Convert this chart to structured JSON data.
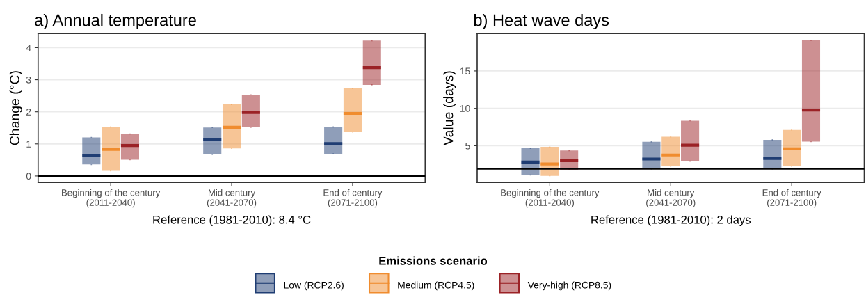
{
  "chart_data": [
    {
      "type": "box",
      "title": "a) Annual temperature",
      "ylabel": "Change (°C)",
      "xlabel": "Reference (1981-2010): 8.4 °C",
      "categories": [
        "Beginning of the century\n(2011-2040)",
        "Mid century\n(2041-2070)",
        "End of century\n(2071-2100)"
      ],
      "ylim": [
        -0.2,
        4.44
      ],
      "yticks": [
        0,
        1,
        2,
        3,
        4
      ],
      "grid": "y",
      "legend": "bottom",
      "legend_title": "Emissions scenario",
      "ref_lines": [
        {
          "axis": "y",
          "value": 0,
          "color": "#000000"
        }
      ],
      "series": [
        {
          "name": "Low (RCP2.6)",
          "color": "#1f3d73",
          "boxes": [
            {
              "low": 0.36,
              "q1": 0.36,
              "median": 0.63,
              "q3": 1.2,
              "high": 1.2
            },
            {
              "low": 0.67,
              "q1": 0.67,
              "median": 1.14,
              "q3": 1.51,
              "high": 1.51
            },
            {
              "low": 0.69,
              "q1": 0.69,
              "median": 1.01,
              "q3": 1.53,
              "high": 1.53
            }
          ]
        },
        {
          "name": "Medium (RCP4.5)",
          "color": "#f08c2e",
          "boxes": [
            {
              "low": 0.16,
              "q1": 0.16,
              "median": 0.83,
              "q3": 1.53,
              "high": 1.53
            },
            {
              "low": 0.86,
              "q1": 0.86,
              "median": 1.52,
              "q3": 2.23,
              "high": 2.23
            },
            {
              "low": 1.37,
              "q1": 1.37,
              "median": 1.95,
              "q3": 2.73,
              "high": 2.73
            }
          ]
        },
        {
          "name": "Very-high (RCP8.5)",
          "color": "#9b2226",
          "boxes": [
            {
              "low": 0.51,
              "q1": 0.51,
              "median": 0.95,
              "q3": 1.31,
              "high": 1.31
            },
            {
              "low": 1.52,
              "q1": 1.52,
              "median": 1.98,
              "q3": 2.53,
              "high": 2.53
            },
            {
              "low": 2.84,
              "q1": 2.84,
              "median": 3.38,
              "q3": 4.22,
              "high": 4.22
            }
          ]
        }
      ]
    },
    {
      "type": "box",
      "title": "b) Heat wave days",
      "ylabel": "Value (days)",
      "xlabel": "Reference (1981-2010): 2 days",
      "categories": [
        "Beginning of the century\n(2011-2040)",
        "Mid century\n(2041-2070)",
        "End of century\n(2071-2100)"
      ],
      "ylim": [
        0.1,
        20.0
      ],
      "yticks": [
        5,
        10,
        15
      ],
      "grid": "y",
      "ref_lines": [
        {
          "axis": "y",
          "value": 1.9,
          "color": "#000000"
        }
      ],
      "series": [
        {
          "color": "#1f3d73",
          "boxes": [
            {
              "low": 1.09,
              "q1": 1.09,
              "median": 2.82,
              "q3": 4.66,
              "high": 4.66
            },
            {
              "low": 1.92,
              "q1": 1.92,
              "median": 3.23,
              "q3": 5.53,
              "high": 5.53
            },
            {
              "low": 1.92,
              "q1": 1.92,
              "median": 3.31,
              "q3": 5.79,
              "high": 5.79
            }
          ]
        },
        {
          "color": "#f08c2e",
          "boxes": [
            {
              "low": 0.98,
              "q1": 0.98,
              "median": 2.56,
              "q3": 4.85,
              "high": 4.85
            },
            {
              "low": 2.26,
              "q1": 2.26,
              "median": 3.76,
              "q3": 6.2,
              "high": 6.2
            },
            {
              "low": 2.26,
              "q1": 2.26,
              "median": 4.59,
              "q3": 7.11,
              "high": 7.11
            }
          ]
        },
        {
          "color": "#9b2226",
          "boxes": [
            {
              "low": 1.77,
              "q1": 1.77,
              "median": 3.01,
              "q3": 4.36,
              "high": 4.36
            },
            {
              "low": 2.93,
              "q1": 2.93,
              "median": 5.08,
              "q3": 8.35,
              "high": 8.35
            },
            {
              "low": 5.56,
              "q1": 5.56,
              "median": 9.77,
              "q3": 19.1,
              "high": 19.1
            }
          ]
        }
      ]
    }
  ]
}
